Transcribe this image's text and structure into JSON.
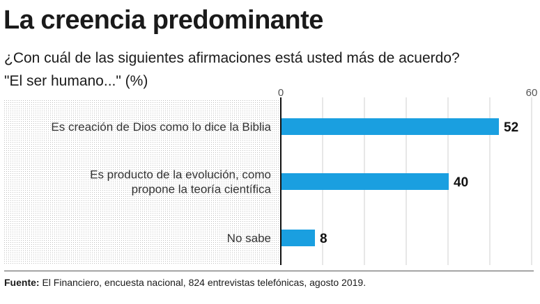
{
  "title": "La creencia predominante",
  "subtitle_line1": "¿Con cuál de las siguientes afirmaciones está usted más de acuerdo?",
  "subtitle_line2": "\"El ser humano...\" (%)",
  "source_label": "Fuente:",
  "source_text": " El Financiero, encuesta nacional, 824 entrevistas telefónicas, agosto 2019.",
  "colors": {
    "bar": "#1a9fe0",
    "dots": "#bdbdbd",
    "axis": "#111111",
    "grid": "#cfcfcf"
  },
  "chart_data": {
    "type": "bar",
    "orientation": "horizontal",
    "categories": [
      [
        "Es creación de Dios como lo dice la Biblia"
      ],
      [
        "Es producto de la evolución, como",
        "propone la teoría científica"
      ],
      [
        "No sabe"
      ]
    ],
    "values": [
      52,
      40,
      8
    ],
    "value_labels": [
      "52",
      "40",
      "8"
    ],
    "xlim": [
      0,
      60
    ],
    "ticks": [
      0,
      60
    ],
    "tick_labels": [
      "0",
      "60"
    ],
    "grid": true,
    "ylabel": "",
    "xlabel": ""
  }
}
